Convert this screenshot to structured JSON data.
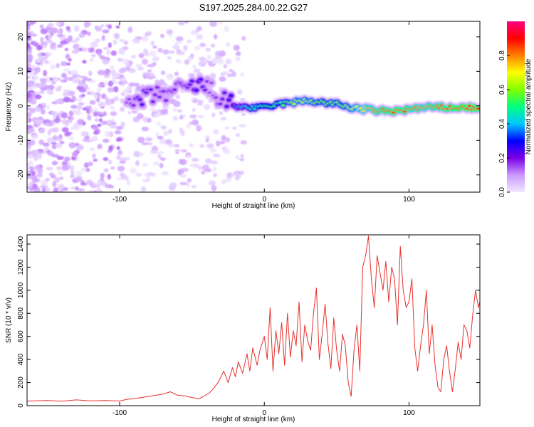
{
  "title": "S197.2025.284.00.22.G27",
  "chart_data": [
    {
      "type": "heatmap",
      "title": "S197.2025.284.00.22.G27",
      "xlabel": "Height of straight line (km)",
      "ylabel": "Frequency (Hz)",
      "xlim": [
        -164,
        149
      ],
      "ylim": [
        -25,
        24.5
      ],
      "xticks": [
        -100,
        0,
        100
      ],
      "xtick_labels": [
        "-100",
        "0",
        "100"
      ],
      "yticks": [
        -20,
        -10,
        0,
        10,
        20
      ],
      "ytick_labels": [
        "-20",
        "-10",
        "0",
        "10",
        "20"
      ],
      "colorbar": {
        "label": "Normalized spectral amplitude",
        "range": [
          0,
          1
        ],
        "ticks": [
          0.0,
          0.2,
          0.4,
          0.6,
          0.8
        ],
        "tick_labels": [
          "0.0",
          "0.2",
          "0.4",
          "0.6",
          "0.8"
        ],
        "colors": [
          "#f0e8ff",
          "#cc99ff",
          "#7a00e6",
          "#0000ff",
          "#00c8ff",
          "#00ff80",
          "#80ff00",
          "#ffff00",
          "#ff8000",
          "#ff0000",
          "#ff0080"
        ]
      },
      "ridge": {
        "description": "dominant frequency track",
        "x": [
          -95,
          -85,
          -75,
          -65,
          -55,
          -45,
          -38,
          -30,
          -20,
          -10,
          0,
          10,
          20,
          30,
          40,
          50,
          60,
          70,
          80,
          90,
          100,
          110,
          120,
          130,
          140,
          149
        ],
        "y": [
          -1,
          2,
          3,
          4,
          5,
          6,
          5,
          2,
          0,
          -0.5,
          -0.5,
          0.5,
          1,
          1.5,
          1,
          0.5,
          -0.5,
          -1,
          -1.5,
          -1.5,
          -1,
          -0.5,
          -0.5,
          -0.5,
          -0.5,
          -0.5
        ],
        "amplitude": [
          0.15,
          0.25,
          0.2,
          0.2,
          0.2,
          0.3,
          0.15,
          0.2,
          0.35,
          0.45,
          0.55,
          0.55,
          0.65,
          0.65,
          0.6,
          0.6,
          0.65,
          0.75,
          0.85,
          0.9,
          0.85,
          0.8,
          0.85,
          0.9,
          0.95,
          0.9
        ]
      }
    },
    {
      "type": "line",
      "xlabel": "Height of straight line (km)",
      "ylabel": "SNR (10 * v/v)",
      "xlim": [
        -164,
        149
      ],
      "ylim": [
        0,
        1480
      ],
      "xticks": [
        -100,
        0,
        100
      ],
      "xtick_labels": [
        "-100",
        "0",
        "100"
      ],
      "yticks": [
        0,
        200,
        400,
        600,
        800,
        1000,
        1200,
        1400
      ],
      "ytick_labels": [
        "0",
        "200",
        "400",
        "600",
        "800",
        "1000",
        "1200",
        "1400"
      ],
      "color": "#e8302c",
      "x": [
        -164,
        -150,
        -140,
        -130,
        -120,
        -110,
        -100,
        -95,
        -90,
        -85,
        -80,
        -75,
        -70,
        -65,
        -60,
        -55,
        -50,
        -45,
        -42,
        -38,
        -35,
        -32,
        -30,
        -28,
        -25,
        -22,
        -20,
        -18,
        -15,
        -12,
        -10,
        -8,
        -5,
        -3,
        0,
        2,
        4,
        6,
        8,
        10,
        12,
        14,
        16,
        18,
        20,
        22,
        24,
        26,
        28,
        30,
        32,
        34,
        36,
        38,
        40,
        42,
        44,
        46,
        48,
        50,
        52,
        54,
        56,
        58,
        60,
        62,
        64,
        66,
        68,
        70,
        72,
        74,
        76,
        78,
        80,
        82,
        84,
        86,
        88,
        90,
        92,
        94,
        96,
        98,
        100,
        102,
        104,
        106,
        108,
        110,
        112,
        114,
        116,
        118,
        120,
        122,
        124,
        126,
        128,
        130,
        132,
        134,
        136,
        138,
        140,
        142,
        144,
        146,
        148,
        149
      ],
      "y": [
        40,
        45,
        38,
        50,
        42,
        45,
        40,
        55,
        60,
        70,
        80,
        90,
        100,
        120,
        90,
        85,
        70,
        60,
        80,
        110,
        150,
        200,
        250,
        300,
        200,
        330,
        250,
        380,
        280,
        450,
        300,
        500,
        350,
        480,
        600,
        400,
        850,
        300,
        650,
        450,
        720,
        350,
        800,
        420,
        650,
        520,
        900,
        380,
        700,
        560,
        480,
        800,
        1020,
        400,
        620,
        880,
        540,
        320,
        760,
        480,
        300,
        620,
        520,
        200,
        80,
        480,
        700,
        300,
        1200,
        1300,
        1470,
        1100,
        850,
        1300,
        1150,
        1000,
        1250,
        900,
        1200,
        1100,
        700,
        1380,
        1000,
        850,
        900,
        1100,
        500,
        300,
        520,
        700,
        1000,
        450,
        700,
        350,
        160,
        120,
        400,
        520,
        300,
        120,
        320,
        550,
        400,
        700,
        650,
        500,
        780,
        1000,
        850,
        900
      ]
    }
  ]
}
